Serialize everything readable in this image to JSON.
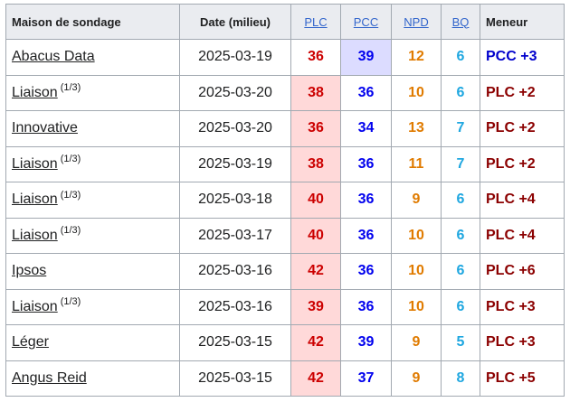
{
  "headers": {
    "firm": "Maison de sondage",
    "date": "Date (milieu)",
    "plc": "PLC",
    "pcc": "PCC",
    "npd": "NPD",
    "bq": "BQ",
    "lead": "Meneur"
  },
  "colors": {
    "plc": "#cc0000",
    "pcc": "#0000ee",
    "npd": "#e07b00",
    "bq": "#1fa7e0",
    "lead_plc": "#8b0000",
    "lead_pcc": "#0000cc",
    "highlight_plc": "#ffd9d9",
    "highlight_pcc": "#dcdcff"
  },
  "rows": [
    {
      "firm": "Abacus Data",
      "note": "",
      "date": "2025-03-19",
      "plc": "36",
      "pcc": "39",
      "npd": "12",
      "bq": "6",
      "lead": "PCC +3",
      "leader": "pcc"
    },
    {
      "firm": "Liaison",
      "note": "(1/3)",
      "date": "2025-03-20",
      "plc": "38",
      "pcc": "36",
      "npd": "10",
      "bq": "6",
      "lead": "PLC +2",
      "leader": "plc"
    },
    {
      "firm": "Innovative",
      "note": "",
      "date": "2025-03-20",
      "plc": "36",
      "pcc": "34",
      "npd": "13",
      "bq": "7",
      "lead": "PLC +2",
      "leader": "plc"
    },
    {
      "firm": "Liaison",
      "note": "(1/3)",
      "date": "2025-03-19",
      "plc": "38",
      "pcc": "36",
      "npd": "11",
      "bq": "7",
      "lead": "PLC +2",
      "leader": "plc"
    },
    {
      "firm": "Liaison",
      "note": "(1/3)",
      "date": "2025-03-18",
      "plc": "40",
      "pcc": "36",
      "npd": "9",
      "bq": "6",
      "lead": "PLC +4",
      "leader": "plc"
    },
    {
      "firm": "Liaison",
      "note": "(1/3)",
      "date": "2025-03-17",
      "plc": "40",
      "pcc": "36",
      "npd": "10",
      "bq": "6",
      "lead": "PLC +4",
      "leader": "plc"
    },
    {
      "firm": "Ipsos",
      "note": "",
      "date": "2025-03-16",
      "plc": "42",
      "pcc": "36",
      "npd": "10",
      "bq": "6",
      "lead": "PLC +6",
      "leader": "plc"
    },
    {
      "firm": "Liaison",
      "note": "(1/3)",
      "date": "2025-03-16",
      "plc": "39",
      "pcc": "36",
      "npd": "10",
      "bq": "6",
      "lead": "PLC +3",
      "leader": "plc"
    },
    {
      "firm": "Léger",
      "note": "",
      "date": "2025-03-15",
      "plc": "42",
      "pcc": "39",
      "npd": "9",
      "bq": "5",
      "lead": "PLC +3",
      "leader": "plc"
    },
    {
      "firm": "Angus Reid",
      "note": "",
      "date": "2025-03-15",
      "plc": "42",
      "pcc": "37",
      "npd": "9",
      "bq": "8",
      "lead": "PLC +5",
      "leader": "plc"
    }
  ]
}
